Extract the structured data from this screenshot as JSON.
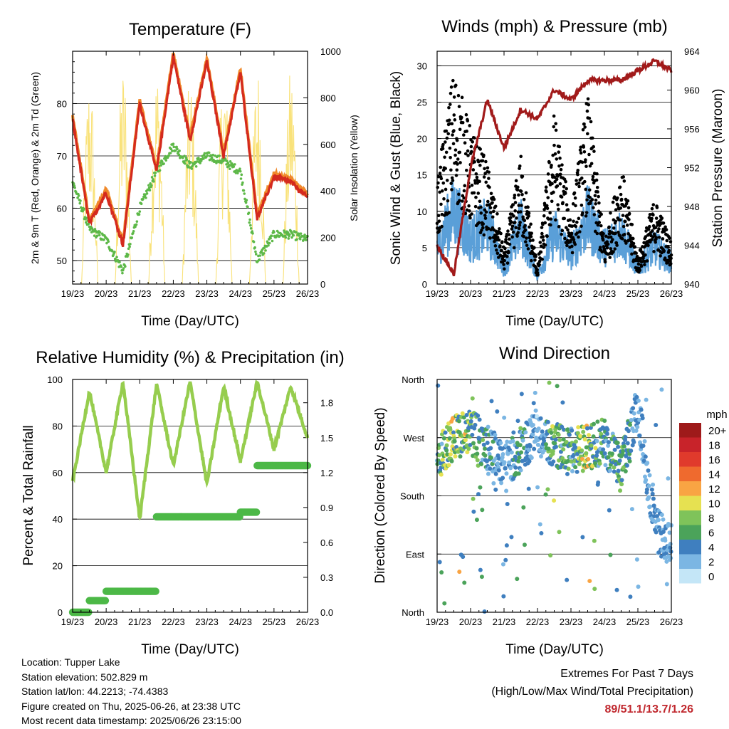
{
  "ticks_x": [
    "19/23",
    "20/23",
    "21/23",
    "22/23",
    "23/23",
    "24/23",
    "25/23",
    "26/23"
  ],
  "panels": {
    "temperature": {
      "title": "Temperature (F)",
      "xlabel": "Time (Day/UTC)",
      "ylabel_left": "2m & 9m T (Red, Orange) & 2m Td (Green)",
      "ylabel_right": "Solar Insolation (Yellow)",
      "left_ticks": [
        "50",
        "60",
        "70",
        "80"
      ],
      "right_ticks": [
        "0",
        "200",
        "400",
        "600",
        "800",
        "1000"
      ]
    },
    "winds": {
      "title": "Winds (mph) & Pressure (mb)",
      "xlabel": "Time (Day/UTC)",
      "ylabel_left": "Sonic Wind & Gust (Blue, Black)",
      "ylabel_right": "Station Pressure (Maroon)",
      "left_ticks": [
        "0",
        "5",
        "10",
        "15",
        "20",
        "25",
        "30"
      ],
      "right_ticks": [
        "940",
        "944",
        "948",
        "952",
        "956",
        "960",
        "964"
      ]
    },
    "humidity": {
      "title": "Relative Humidity (%) & Precipitation (in)",
      "xlabel": "Time (Day/UTC)",
      "ylabel_left": "Percent & Total Rainfall",
      "left_ticks": [
        "0",
        "20",
        "40",
        "60",
        "80",
        "100"
      ],
      "right_ticks": [
        "0.0",
        "0.3",
        "0.6",
        "0.9",
        "1.2",
        "1.5",
        "1.8"
      ]
    },
    "direction": {
      "title": "Wind Direction",
      "xlabel": "Time (Day/UTC)",
      "ylabel_left": "Direction (Colored By Speed)",
      "left_ticks": [
        "North",
        "East",
        "South",
        "West",
        "North"
      ],
      "legend_title": "mph",
      "legend_labels": [
        "20+",
        "18",
        "16",
        "14",
        "12",
        "10",
        "8",
        "6",
        "4",
        "2",
        "0"
      ],
      "legend_colors": [
        "#9e1a1a",
        "#c8232a",
        "#e03a2c",
        "#ef6a2e",
        "#f9a443",
        "#e6e151",
        "#7fc35a",
        "#4ba35a",
        "#3f7fbf",
        "#7bb6e3",
        "#c4e6f7"
      ]
    }
  },
  "info": {
    "location": "Location: Tupper Lake",
    "elevation": "Station elevation: 502.829 m",
    "latlon": "Station lat/lon: 44.2213; -74.4383",
    "created": "Figure created on Thu, 2025-06-26, at 23:38 UTC",
    "recent": "Most recent data timestamp: 2025/06/26 23:15:00"
  },
  "extremes": {
    "line1": "Extremes For Past 7 Days",
    "line2": "(High/Low/Max Wind/Total Precipitation)",
    "values": "89/51.1/13.7/1.26"
  },
  "colors": {
    "temp_2m": "#d42a1e",
    "temp_9m": "#f0892a",
    "dewpoint": "#5db848",
    "solar": "#f9e27a",
    "wind": "#5a9fd8",
    "gust": "#000000",
    "pressure": "#a11a1a",
    "rh": "#96cd4e",
    "rain": "#4cb847"
  },
  "chart_data": [
    {
      "type": "line",
      "title": "Temperature (F)",
      "xlabel": "Time (Day/UTC)",
      "ylabel": "2m & 9m T (Red, Orange) & 2m Td (Green)",
      "y2label": "Solar Insolation (Yellow)",
      "x": [
        0,
        0.5,
        1,
        1.5,
        2,
        2.5,
        3,
        3.5,
        4,
        4.5,
        5,
        5.5,
        6,
        6.5,
        7
      ],
      "ylim": [
        45.5,
        90
      ],
      "y2lim": [
        0,
        1000
      ],
      "series": [
        {
          "name": "2m T",
          "values": [
            77,
            57,
            63,
            53,
            80,
            67,
            89,
            73,
            88,
            70,
            86,
            58,
            66,
            65,
            62
          ]
        },
        {
          "name": "2m Td",
          "values": [
            65,
            56,
            54,
            48,
            60,
            67,
            72,
            68,
            70,
            69,
            67,
            50,
            55,
            55,
            54
          ]
        },
        {
          "name": "Solar Insolation",
          "axis": "right",
          "day_peaks": [
            920,
            960,
            950,
            900,
            950,
            960,
            950
          ]
        }
      ]
    },
    {
      "type": "line",
      "title": "Winds (mph) & Pressure (mb)",
      "xlabel": "Time (Day/UTC)",
      "ylabel": "Sonic Wind & Gust (Blue, Black)",
      "y2label": "Station Pressure (Maroon)",
      "x": [
        0,
        0.5,
        1,
        1.5,
        2,
        2.5,
        3,
        3.5,
        4,
        4.5,
        5,
        5.5,
        6,
        6.5,
        7
      ],
      "ylim": [
        0,
        32
      ],
      "y2lim": [
        940,
        964
      ],
      "series": [
        {
          "name": "Wind",
          "values": [
            5,
            10,
            6,
            8,
            2,
            8,
            1,
            7,
            4,
            9,
            5,
            7,
            2,
            5,
            3
          ]
        },
        {
          "name": "Gust",
          "values": [
            12,
            25,
            18,
            14,
            4,
            15,
            2,
            20,
            8,
            22,
            5,
            14,
            3,
            10,
            5
          ]
        },
        {
          "name": "Pressure",
          "axis": "right",
          "values": [
            944,
            941,
            952,
            959,
            954,
            958,
            957,
            960,
            959,
            961,
            961,
            961,
            962,
            963,
            962
          ]
        }
      ]
    },
    {
      "type": "line",
      "title": "Relative Humidity (%) & Precipitation (in)",
      "xlabel": "Time (Day/UTC)",
      "ylabel": "Percent & Total Rainfall",
      "x": [
        0,
        0.5,
        1,
        1.5,
        2,
        2.5,
        3,
        3.5,
        4,
        4.5,
        5,
        5.5,
        6,
        6.5,
        7
      ],
      "ylim": [
        0,
        100
      ],
      "y2lim": [
        0,
        2
      ],
      "series": [
        {
          "name": "RH",
          "values": [
            56,
            95,
            60,
            99,
            40,
            98,
            63,
            99,
            55,
            97,
            65,
            99,
            70,
            97,
            75
          ]
        },
        {
          "name": "Precipitation",
          "axis": "right",
          "values": [
            0,
            0.1,
            0.18,
            0.18,
            0.18,
            0.82,
            0.82,
            0.82,
            0.82,
            0.82,
            0.86,
            1.26,
            1.26,
            1.26,
            1.26
          ]
        }
      ]
    },
    {
      "type": "scatter",
      "title": "Wind Direction",
      "xlabel": "Time (Day/UTC)",
      "ylabel": "Direction (Colored By Speed)",
      "y_categories": [
        "North",
        "East",
        "South",
        "West",
        "North"
      ],
      "x": [
        0,
        0.5,
        1,
        1.5,
        2,
        2.5,
        3,
        3.5,
        4,
        4.5,
        5,
        5.5,
        6,
        6.5,
        7
      ],
      "direction_deg": [
        240,
        270,
        280,
        255,
        230,
        250,
        280,
        260,
        250,
        255,
        265,
        220,
        320,
        130,
        100
      ],
      "speed_mph": [
        6,
        10,
        8,
        5,
        3,
        6,
        2,
        8,
        6,
        10,
        5,
        7,
        3,
        4,
        3
      ]
    }
  ]
}
